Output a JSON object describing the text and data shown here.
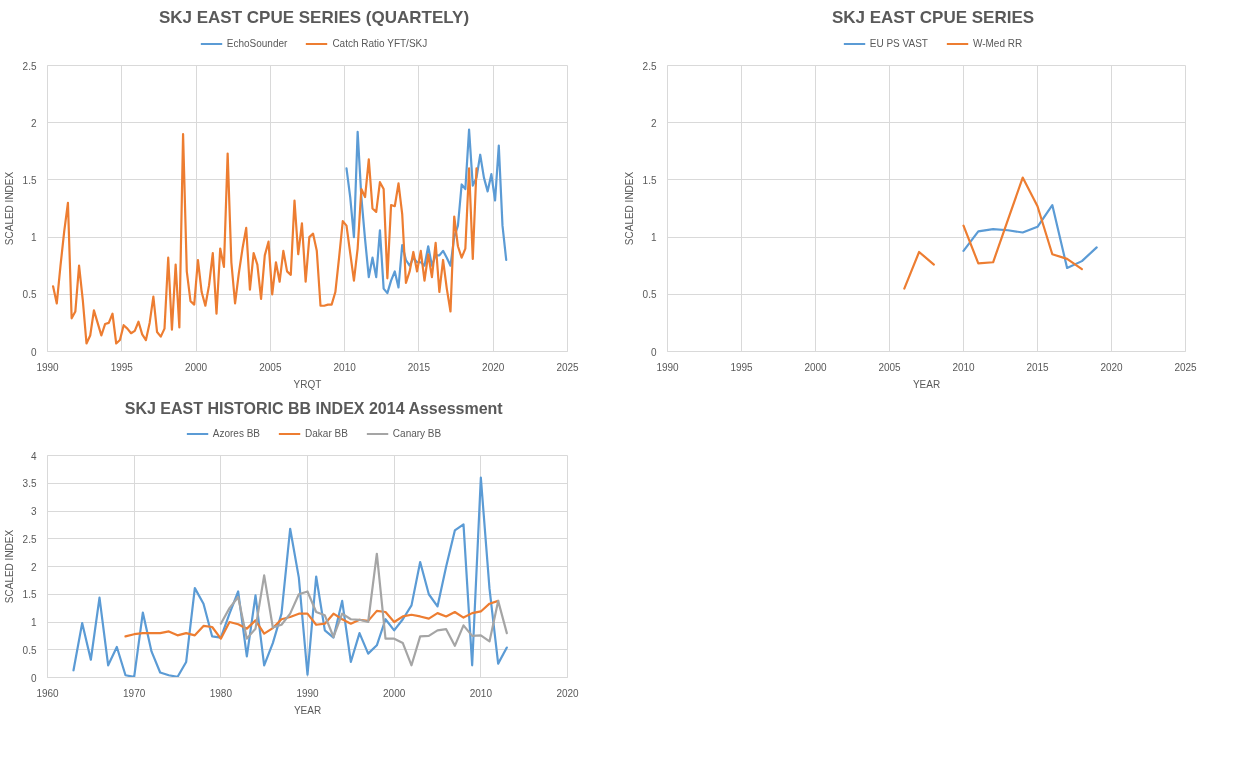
{
  "chart_data": [
    {
      "type": "line",
      "title": "SKJ EAST CPUE SERIES (QUARTELY)",
      "xlabel": "YRQT",
      "ylabel": "SCALED INDEX",
      "xlim": [
        1990,
        2025
      ],
      "xticks": [
        1990,
        1995,
        2000,
        2005,
        2010,
        2015,
        2020,
        2025
      ],
      "ylim": [
        0,
        2.5
      ],
      "yticks": [
        0,
        0.5,
        1,
        1.5,
        2,
        2.5
      ],
      "grid": true,
      "legend": "top",
      "marker": "none",
      "line_style": "solid",
      "series": [
        {
          "name": "EchoSounder",
          "color": "#5b9bd5",
          "x": [
            2010.125,
            2010.375,
            2010.625,
            2010.875,
            2011.125,
            2011.375,
            2011.625,
            2011.875,
            2012.125,
            2012.375,
            2012.625,
            2012.875,
            2013.125,
            2013.375,
            2013.625,
            2013.875,
            2014.125,
            2014.375,
            2014.625,
            2014.875,
            2015.125,
            2015.375,
            2015.625,
            2015.875,
            2016.125,
            2016.375,
            2016.625,
            2016.875,
            2017.125,
            2017.375,
            2017.625,
            2017.875,
            2018.125,
            2018.375,
            2018.625,
            2018.875,
            2019.125,
            2019.375,
            2019.625,
            2019.875,
            2020.125,
            2020.375,
            2020.625,
            2020.875
          ],
          "values": [
            1.6,
            1.35,
            1.0,
            1.92,
            1.35,
            0.98,
            0.65,
            0.82,
            0.65,
            1.06,
            0.55,
            0.51,
            0.62,
            0.7,
            0.56,
            0.93,
            0.8,
            0.75,
            0.82,
            0.78,
            0.78,
            0.75,
            0.92,
            0.75,
            0.84,
            0.84,
            0.88,
            0.82,
            0.75,
            1.0,
            1.1,
            1.46,
            1.42,
            1.94,
            1.45,
            1.52,
            1.72,
            1.52,
            1.4,
            1.55,
            1.32,
            1.8,
            1.1,
            0.8
          ]
        },
        {
          "name": "Catch Ratio YFT/SKJ",
          "color": "#ed7d31",
          "x": [
            1990.375,
            1990.625,
            1990.875,
            1991.125,
            1991.375,
            1991.625,
            1991.875,
            1992.125,
            1992.375,
            1992.625,
            1992.875,
            1993.125,
            1993.375,
            1993.625,
            1993.875,
            1994.125,
            1994.375,
            1994.625,
            1994.875,
            1995.125,
            1995.375,
            1995.625,
            1995.875,
            1996.125,
            1996.375,
            1996.625,
            1996.875,
            1997.125,
            1997.375,
            1997.625,
            1997.875,
            1998.125,
            1998.375,
            1998.625,
            1998.875,
            1999.125,
            1999.375,
            1999.625,
            1999.875,
            2000.125,
            2000.375,
            2000.625,
            2000.875,
            2001.125,
            2001.375,
            2001.625,
            2001.875,
            2002.125,
            2002.375,
            2002.625,
            2002.875,
            2003.125,
            2003.375,
            2003.625,
            2003.875,
            2004.125,
            2004.375,
            2004.625,
            2004.875,
            2005.125,
            2005.375,
            2005.625,
            2005.875,
            2006.125,
            2006.375,
            2006.625,
            2006.875,
            2007.125,
            2007.375,
            2007.625,
            2007.875,
            2008.125,
            2008.375,
            2008.625,
            2008.875,
            2009.125,
            2009.375,
            2009.625,
            2009.875,
            2010.125,
            2010.375,
            2010.625,
            2010.875,
            2011.125,
            2011.375,
            2011.625,
            2011.875,
            2012.125,
            2012.375,
            2012.625,
            2012.875,
            2013.125,
            2013.375,
            2013.625,
            2013.875,
            2014.125,
            2014.375,
            2014.625,
            2014.875,
            2015.125,
            2015.375,
            2015.625,
            2015.875,
            2016.125,
            2016.375,
            2016.625,
            2016.875,
            2017.125,
            2017.375,
            2017.625,
            2017.875,
            2018.125,
            2018.375,
            2018.625,
            2018.875
          ],
          "values": [
            0.57,
            0.42,
            0.75,
            1.05,
            1.3,
            0.29,
            0.35,
            0.75,
            0.45,
            0.07,
            0.14,
            0.36,
            0.25,
            0.14,
            0.24,
            0.25,
            0.33,
            0.07,
            0.1,
            0.23,
            0.2,
            0.16,
            0.18,
            0.26,
            0.15,
            0.1,
            0.25,
            0.48,
            0.17,
            0.13,
            0.2,
            0.82,
            0.19,
            0.76,
            0.21,
            1.9,
            0.7,
            0.44,
            0.41,
            0.8,
            0.52,
            0.4,
            0.58,
            0.86,
            0.33,
            0.9,
            0.74,
            1.73,
            0.78,
            0.42,
            0.68,
            0.9,
            1.08,
            0.54,
            0.86,
            0.76,
            0.46,
            0.84,
            0.96,
            0.5,
            0.78,
            0.61,
            0.88,
            0.7,
            0.67,
            1.32,
            0.85,
            1.12,
            0.61,
            1.0,
            1.03,
            0.88,
            0.4,
            0.4,
            0.41,
            0.41,
            0.52,
            0.82,
            1.14,
            1.1,
            0.86,
            0.62,
            0.9,
            1.42,
            1.35,
            1.68,
            1.25,
            1.22,
            1.48,
            1.42,
            0.64,
            1.28,
            1.27,
            1.47,
            1.2,
            0.6,
            0.7,
            0.87,
            0.7,
            0.88,
            0.62,
            0.85,
            0.65,
            0.95,
            0.52,
            0.8,
            0.55,
            0.35,
            1.18,
            0.92,
            0.82,
            0.9,
            1.6,
            0.81,
            1.6
          ]
        }
      ]
    },
    {
      "type": "line",
      "title": "SKJ EAST CPUE SERIES",
      "xlabel": "YEAR",
      "ylabel": "SCALED INDEX",
      "xlim": [
        1990,
        2025
      ],
      "xticks": [
        1990,
        1995,
        2000,
        2005,
        2010,
        2015,
        2020,
        2025
      ],
      "ylim": [
        0,
        2.5
      ],
      "yticks": [
        0,
        0.5,
        1,
        1.5,
        2,
        2.5
      ],
      "grid": true,
      "legend": "top",
      "marker": "none",
      "line_style": "solid",
      "series": [
        {
          "name": "EU PS VAST",
          "color": "#5b9bd5",
          "x": [
            2010,
            2011,
            2012,
            2013,
            2014,
            2015,
            2016,
            2017,
            2018,
            2019
          ],
          "values": [
            0.88,
            1.05,
            1.07,
            1.06,
            1.04,
            1.09,
            1.28,
            0.73,
            0.79,
            0.91
          ]
        },
        {
          "name": "W-Med RR",
          "color": "#ed7d31",
          "x": [
            2006,
            2007,
            2008,
            2009,
            2010,
            2011,
            2012,
            2013,
            2014,
            2015,
            2016,
            2017,
            2018
          ],
          "values": [
            0.55,
            0.87,
            0.76,
            null,
            1.1,
            0.77,
            0.78,
            1.15,
            1.52,
            1.27,
            0.85,
            0.81,
            0.72
          ]
        }
      ]
    },
    {
      "type": "line",
      "title": "SKJ EAST HISTORIC BB INDEX 2014 Assessment",
      "xlabel": "YEAR",
      "ylabel": "SCALED INDEX",
      "xlim": [
        1960,
        2020
      ],
      "xticks": [
        1960,
        1970,
        1980,
        1990,
        2000,
        2010,
        2020
      ],
      "ylim": [
        0,
        4
      ],
      "yticks": [
        0,
        0.5,
        1,
        1.5,
        2,
        2.5,
        3,
        3.5,
        4
      ],
      "grid": true,
      "legend": "top",
      "marker": "none",
      "line_style": "solid",
      "series": [
        {
          "name": "Azores BB",
          "color": "#5b9bd5",
          "x": [
            1963,
            1964,
            1965,
            1966,
            1967,
            1968,
            1969,
            1970,
            1971,
            1972,
            1973,
            1974,
            1975,
            1976,
            1977,
            1978,
            1979,
            1980,
            1981,
            1982,
            1983,
            1984,
            1985,
            1986,
            1987,
            1988,
            1989,
            1990,
            1991,
            1992,
            1993,
            1994,
            1995,
            1996,
            1997,
            1998,
            1999,
            2000,
            2001,
            2002,
            2003,
            2004,
            2005,
            2006,
            2007,
            2008,
            2009,
            2010,
            2011,
            2012,
            2013
          ],
          "values": [
            0.13,
            0.98,
            0.32,
            1.44,
            0.22,
            0.55,
            0.04,
            0.01,
            1.17,
            0.47,
            0.09,
            0.04,
            0.01,
            0.28,
            1.61,
            1.33,
            0.74,
            0.72,
            1.15,
            1.55,
            0.38,
            1.48,
            0.22,
            0.62,
            1.15,
            2.68,
            1.8,
            0.05,
            1.82,
            0.85,
            0.72,
            1.38,
            0.28,
            0.8,
            0.43,
            0.58,
            1.05,
            0.85,
            1.05,
            1.3,
            2.08,
            1.5,
            1.28,
            2.0,
            2.65,
            2.76,
            0.22,
            3.6,
            1.6,
            0.25,
            0.54
          ]
        },
        {
          "name": "Dakar BB",
          "color": "#ed7d31",
          "x": [
            1969,
            1970,
            1971,
            1972,
            1973,
            1974,
            1975,
            1976,
            1977,
            1978,
            1979,
            1980,
            1981,
            1982,
            1983,
            1984,
            1985,
            1986,
            1987,
            1988,
            1989,
            1990,
            1991,
            1992,
            1993,
            1994,
            1995,
            1996,
            1997,
            1998,
            1999,
            2000,
            2001,
            2002,
            2003,
            2004,
            2005,
            2006,
            2007,
            2008,
            2009,
            2010,
            2011,
            2012
          ],
          "values": [
            0.74,
            0.78,
            0.8,
            0.8,
            0.8,
            0.83,
            0.76,
            0.8,
            0.76,
            0.93,
            0.91,
            0.7,
            1.0,
            0.96,
            0.88,
            1.03,
            0.79,
            0.89,
            1.05,
            1.09,
            1.15,
            1.15,
            0.95,
            0.97,
            1.15,
            1.05,
            0.97,
            1.04,
            1.02,
            1.2,
            1.18,
            1.0,
            1.1,
            1.13,
            1.1,
            1.06,
            1.16,
            1.1,
            1.18,
            1.08,
            1.16,
            1.19,
            1.33,
            1.38
          ]
        },
        {
          "name": "Canary BB",
          "color": "#a5a5a5",
          "x": [
            1980,
            1981,
            1982,
            1983,
            1984,
            1985,
            1986,
            1987,
            1988,
            1989,
            1990,
            1991,
            1992,
            1993,
            1994,
            1995,
            1996,
            1997,
            1998,
            1999,
            2000,
            2001,
            2002,
            2003,
            2004,
            2005,
            2006,
            2007,
            2008,
            2009,
            2010,
            2011,
            2012,
            2013
          ],
          "values": [
            0.97,
            1.25,
            1.45,
            0.7,
            0.88,
            1.84,
            0.9,
            0.95,
            1.15,
            1.5,
            1.55,
            1.18,
            1.12,
            0.73,
            1.15,
            1.05,
            1.04,
            1.0,
            2.23,
            0.7,
            0.7,
            0.62,
            0.22,
            0.74,
            0.75,
            0.85,
            0.87,
            0.57,
            0.94,
            0.75,
            0.76,
            0.65,
            1.38,
            0.8
          ]
        }
      ]
    }
  ]
}
